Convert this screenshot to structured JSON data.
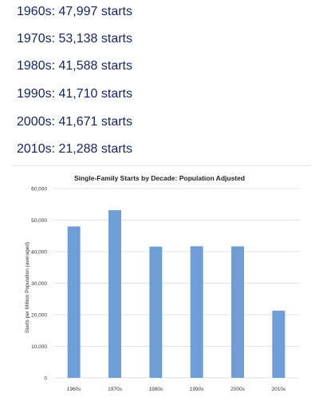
{
  "decade_stats": [
    {
      "label": "1960s:",
      "value": "47,997 starts"
    },
    {
      "label": "1970s:",
      "value": "53,138 starts"
    },
    {
      "label": "1980s:",
      "value": "41,588 starts"
    },
    {
      "label": "1990s:",
      "value": "41,710 starts"
    },
    {
      "label": "2000s:",
      "value": "41,671 starts"
    },
    {
      "label": "2010s:",
      "value": "21,288 starts"
    }
  ],
  "colors": {
    "text": "#15245a",
    "bar": "#6f9ed6",
    "grid": "#d9d9d9"
  },
  "chart_data": {
    "type": "bar",
    "title": "Single-Family Starts by Decade: Population Adjusted",
    "xlabel": "",
    "ylabel": "Starts per Million Population (averaged)",
    "categories": [
      "1960s",
      "1970s",
      "1980s",
      "1990s",
      "2000s",
      "2010s"
    ],
    "values": [
      47997,
      53138,
      41588,
      41710,
      41671,
      21288
    ],
    "ylim": [
      0,
      60000
    ],
    "yticks": [
      0,
      10000,
      20000,
      30000,
      40000,
      50000,
      60000
    ],
    "ytick_labels": [
      "0",
      "10,000",
      "20,000",
      "30,000",
      "40,000",
      "50,000",
      "60,000"
    ],
    "grid": true,
    "legend": "none"
  }
}
